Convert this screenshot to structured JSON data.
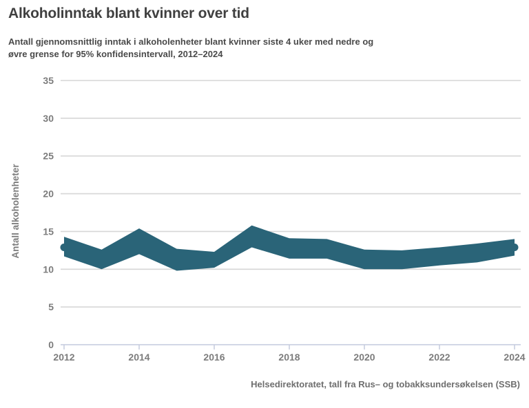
{
  "chart_data": {
    "type": "area",
    "band_type": "confidence-interval-range",
    "title": "Alkoholinntak blant kvinner over tid",
    "subtitle": "Antall gjennomsnittlig inntak i alkoholenheter blant kvinner siste 4 uker med nedre og\nøvre grense for 95% konfidensintervall, 2012–2024",
    "source": "Helsedirektoratet, tall fra Rus– og tobakksundersøkelsen (SSB)",
    "xlabel": "",
    "ylabel": "Antall alkoholenheter",
    "x": [
      2012,
      2013,
      2014,
      2015,
      2016,
      2017,
      2018,
      2019,
      2020,
      2021,
      2022,
      2023,
      2024
    ],
    "x_ticks": [
      2012,
      2014,
      2016,
      2018,
      2020,
      2022,
      2024
    ],
    "y_ticks": [
      0,
      5,
      10,
      15,
      20,
      25,
      30,
      35
    ],
    "ylim": [
      0,
      35
    ],
    "grid": "horizontal",
    "legend": "none",
    "series": [
      {
        "name": "Øvre grense 95% konfidensintervall",
        "values": [
          14.3,
          12.6,
          15.4,
          12.7,
          12.3,
          15.8,
          14.1,
          14.0,
          12.6,
          12.5,
          12.9,
          13.4,
          14.0
        ]
      },
      {
        "name": "Nedre grense 95% konfidensintervall",
        "values": [
          11.7,
          10.0,
          12.0,
          9.8,
          10.2,
          12.9,
          11.4,
          11.4,
          10.0,
          10.0,
          10.5,
          10.9,
          11.8
        ]
      }
    ],
    "endpoint_markers": [
      {
        "x": 2012,
        "value": 12.9
      },
      {
        "x": 2024,
        "value": 12.9
      }
    ],
    "colors": {
      "band": "#2a6478",
      "grid": "#d6d6d6",
      "axis": "#c4cade",
      "title_text": "#404040",
      "subtitle_text": "#4a4a4a",
      "tick_text": "#7c7c7c",
      "source_text": "#6e6e6e",
      "background": "#ffffff"
    }
  }
}
